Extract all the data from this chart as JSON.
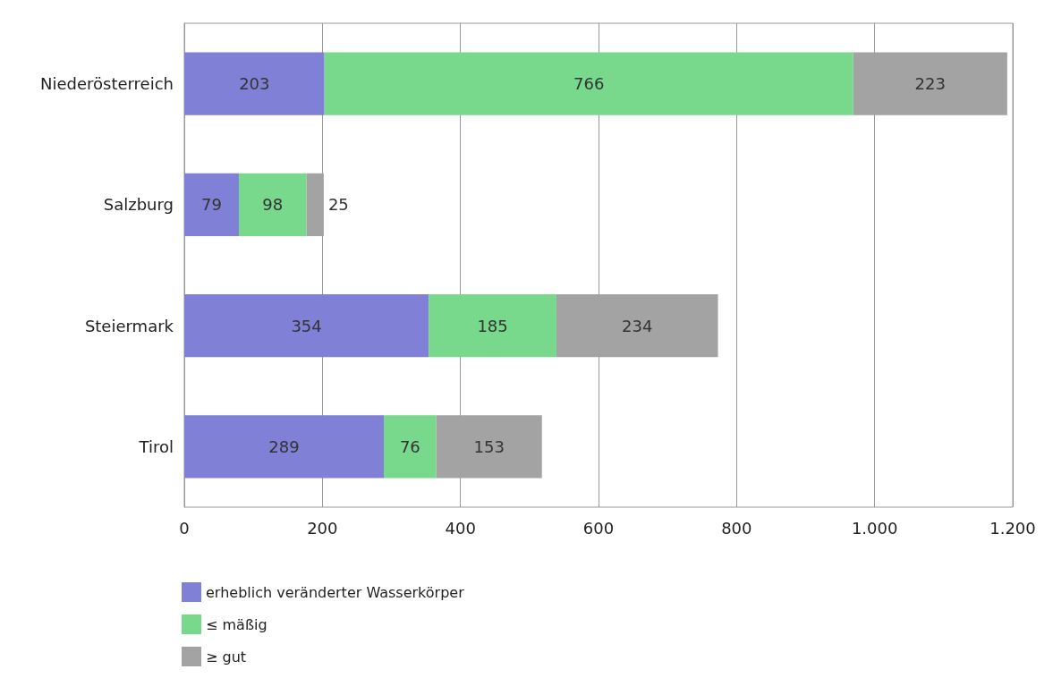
{
  "chart_data": {
    "type": "bar",
    "orientation": "horizontal",
    "stacked": true,
    "categories": [
      "Niederösterreich",
      "Salzburg",
      "Steiermark",
      "Tirol"
    ],
    "series": [
      {
        "name": "erheblich veränderter Wasserkörper",
        "color": "#7f80d6",
        "values": [
          203,
          79,
          354,
          289
        ]
      },
      {
        "name": "≤ mäßig",
        "color": "#78d88c",
        "values": [
          766,
          98,
          185,
          76
        ]
      },
      {
        "name": "≥ gut",
        "color": "#a3a3a3",
        "values": [
          223,
          25,
          234,
          153
        ]
      }
    ],
    "xlim": [
      0,
      1200
    ],
    "xticks": [
      0,
      200,
      400,
      600,
      800,
      {
        "value": 1000,
        "label": "1.000"
      },
      {
        "value": 1200,
        "label": "1.200"
      }
    ],
    "grid": "x",
    "legend": "bottom left",
    "data_labels": true
  }
}
